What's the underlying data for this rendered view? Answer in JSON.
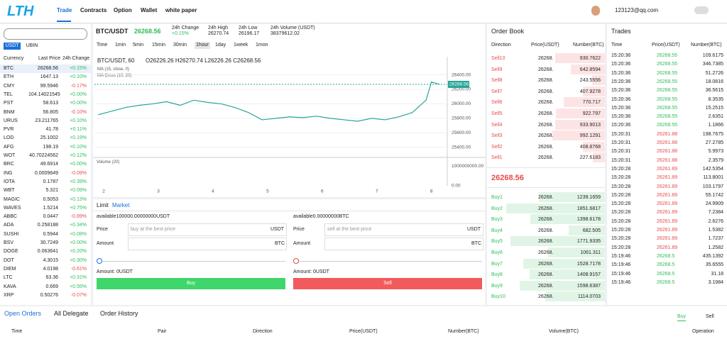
{
  "header": {
    "logo": "LTH",
    "nav": [
      "Trade",
      "Contracts",
      "Option",
      "Wallet",
      "white paper"
    ],
    "user": "123123@qq.com"
  },
  "markets": {
    "tabs": [
      "USDT",
      "UBIN"
    ],
    "columns": [
      "Currency",
      "Last Price",
      "24h Change"
    ],
    "rows": [
      [
        "BTC",
        "26268.56",
        "+0.15%"
      ],
      [
        "ETH",
        "1647.13",
        "+0.10%"
      ],
      [
        "CMY",
        "99.5946",
        "-0.17%"
      ],
      [
        "TEL",
        "104.14021545",
        "+0.00%"
      ],
      [
        "PST",
        "58.613",
        "+0.00%"
      ],
      [
        "BNM",
        "56.805",
        "-0.10%"
      ],
      [
        "URUS",
        "23.211765",
        "+0.10%"
      ],
      [
        "PVR",
        "41.78",
        "+0.11%"
      ],
      [
        "LOD",
        "25.1002",
        "+0.19%"
      ],
      [
        "AFG",
        "198.19",
        "+0.10%"
      ],
      [
        "WOT",
        "40.70224562",
        "+0.12%"
      ],
      [
        "BRC",
        "49.6914",
        "+0.00%"
      ],
      [
        "ING",
        "0.0009649",
        "-0.09%"
      ],
      [
        "IOTA",
        "0.1787",
        "+0.39%"
      ],
      [
        "WBT",
        "5.321",
        "+0.09%"
      ],
      [
        "MAGIC",
        "0.5053",
        "+0.13%"
      ],
      [
        "WAVES",
        "1.5214",
        "+0.75%"
      ],
      [
        "ABBC",
        "0.0447",
        "-0.89%"
      ],
      [
        "ADA",
        "0.258188",
        "+0.34%"
      ],
      [
        "SUSHI",
        "0.5944",
        "+0.08%"
      ],
      [
        "BSV",
        "30.7249",
        "+0.00%"
      ],
      [
        "DOGE",
        "0.063641",
        "+0.20%"
      ],
      [
        "DOT",
        "4.3015",
        "+0.30%"
      ],
      [
        "DIEM",
        "4.0198",
        "-0.61%"
      ],
      [
        "LTC",
        "63.36",
        "+0.31%"
      ],
      [
        "KAVA",
        "0.669",
        "+0.55%"
      ],
      [
        "XRP",
        "0.50276",
        "-0.07%"
      ]
    ]
  },
  "ticker": {
    "pair": "BTC/USDT",
    "price": "26268.56",
    "stats": [
      [
        "24h Change",
        "+0.15%"
      ],
      [
        "24h High",
        "26270.74"
      ],
      [
        "24h Low",
        "26196.17"
      ],
      [
        "24h Volume  (USDT)",
        "38379612.02"
      ]
    ]
  },
  "intervals": [
    "Time",
    "1min",
    "5min",
    "15min",
    "30min",
    "1hour",
    "1day",
    "1week",
    "1mon"
  ],
  "chart": {
    "legend_title": "BTC/USDT, 60",
    "ohlc": "O26226.26 H26270.74 L26226.26 C26268.56",
    "studies": [
      "MA (15, close, 0)",
      "MA Cross (10, 20)"
    ],
    "x": [
      1.9,
      2.15,
      2.4,
      2.65,
      2.9,
      3.15,
      3.4,
      3.65,
      3.9,
      4.15,
      4.4,
      4.65,
      4.9,
      5.15,
      5.4,
      5.65,
      5.9,
      6.15,
      6.4,
      6.65,
      6.9,
      7.15,
      7.4,
      7.65,
      7.9,
      8.0,
      8.1,
      8.15
    ],
    "close": [
      25850,
      25900,
      25950,
      25980,
      26000,
      26030,
      25980,
      26050,
      26020,
      26000,
      25950,
      25880,
      25780,
      25800,
      25820,
      25810,
      25830,
      25800,
      25780,
      25760,
      25800,
      25780,
      25820,
      25880,
      26050,
      26300,
      26280,
      26268.56
    ],
    "color": "#26a69a",
    "xlim": [
      1.83,
      8.29
    ],
    "ylim": [
      25300,
      26650
    ],
    "xticks": [
      2,
      3,
      4,
      5,
      6,
      7,
      8
    ],
    "yticks": [
      {
        "value": 26400,
        "label": "26400.00"
      },
      {
        "value": 26200,
        "label": "26200.00"
      },
      {
        "value": 26000,
        "label": "26000.00"
      },
      {
        "value": 25800,
        "label": "25800.00"
      },
      {
        "value": 25600,
        "label": "25600.00"
      },
      {
        "value": 25400,
        "label": "25400.00"
      }
    ],
    "last": {
      "value": 26268.56,
      "label": "26268.56"
    },
    "volume_title": "Volume (20)",
    "vol_ylim": [
      0,
      1300000000
    ],
    "vol_yticks": [
      {
        "value": 1000000000,
        "label": "1000000000.00"
      },
      {
        "value": 0,
        "label": "0.00"
      }
    ]
  },
  "trade_form": {
    "tabs": [
      "Limit",
      "Market"
    ],
    "buy": {
      "available": "available100000.00000000USDT",
      "price_label": "Price",
      "placeholder": "buy at the best price",
      "price_unit": "USDT",
      "amount_label": "Amount",
      "amount_unit": "BTC",
      "total": "Amount:  0USDT",
      "button": "Buy"
    },
    "sell": {
      "available": "available0.00000000BTC",
      "price_label": "Price",
      "placeholder": "sell at the best price",
      "price_unit": "USDT",
      "amount_label": "Amount",
      "amount_unit": "BTC",
      "total": "Amount:  0USDT",
      "button": "Sell"
    }
  },
  "order_book": {
    "title": "Order Book",
    "columns": [
      "Direction",
      "Price(USDT)",
      "Number(BTC)"
    ],
    "asks": [
      [
        "Sell10",
        "26268.",
        "930.7622"
      ],
      [
        "Sell9",
        "26268.",
        "642.8594"
      ],
      [
        "Sell8",
        "26268.",
        "243.5556"
      ],
      [
        "Sell7",
        "26268.",
        "407.9278"
      ],
      [
        "Sell6",
        "26268.",
        "770.717"
      ],
      [
        "Sell5",
        "26268.",
        "922.797"
      ],
      [
        "Sell4",
        "26268.",
        "933.9013"
      ],
      [
        "Sell3",
        "26268.",
        "992.1291"
      ],
      [
        "Sell2",
        "26268.",
        "408.8768"
      ],
      [
        "Sell1",
        "26268.",
        "227.6183"
      ]
    ],
    "mid": "26268.56",
    "bids": [
      [
        "Buy1",
        "26268.",
        "1239.1659"
      ],
      [
        "Buy2",
        "26268.",
        "1851.6817"
      ],
      [
        "Buy3",
        "26268.",
        "1398.6178"
      ],
      [
        "Buy4",
        "26268.",
        "682.505"
      ],
      [
        "Buy5",
        "26268.",
        "1771.9335"
      ],
      [
        "Buy6",
        "26268.",
        "1061.311"
      ],
      [
        "Buy7",
        "26268.",
        "1528.7178"
      ],
      [
        "Buy8",
        "26268.",
        "1408.9157"
      ],
      [
        "Buy9",
        "26268.",
        "1598.6387"
      ],
      [
        "Buy10",
        "26268.",
        "1114.0703"
      ]
    ]
  },
  "trades": {
    "title": "Trades",
    "columns": [
      "Time",
      "Price(USDT)",
      "Number(BTC)"
    ],
    "rows": [
      [
        "15:20:36",
        "26268.55",
        "109.6175"
      ],
      [
        "15:20:36",
        "26268.55",
        "346.7385"
      ],
      [
        "15:20:36",
        "26268.55",
        "51.2726"
      ],
      [
        "15:20:36",
        "26268.55",
        "18.0816"
      ],
      [
        "15:20:36",
        "26268.55",
        "36.5615"
      ],
      [
        "15:20:36",
        "26268.55",
        "8.3535"
      ],
      [
        "15:20:36",
        "26268.55",
        "15.2515"
      ],
      [
        "15:20:36",
        "26268.55",
        "2.6351"
      ],
      [
        "15:20:36",
        "26268.55",
        "1.1866"
      ],
      [
        "15:20:31",
        "26261.88",
        "198.7675"
      ],
      [
        "15:20:31",
        "26261.88",
        "27.2785"
      ],
      [
        "15:20:31",
        "26261.88",
        "5.9973"
      ],
      [
        "15:20:31",
        "26261.88",
        "2.3579"
      ],
      [
        "15:20:28",
        "26261.89",
        "142.5354"
      ],
      [
        "15:20:28",
        "26261.89",
        "113.8001"
      ],
      [
        "15:20:28",
        "26261.89",
        "103.1797"
      ],
      [
        "15:20:28",
        "26261.89",
        "55.1742"
      ],
      [
        "15:20:28",
        "26261.89",
        "24.9909"
      ],
      [
        "15:20:28",
        "26261.89",
        "7.2384"
      ],
      [
        "15:20:28",
        "26261.89",
        "2.6276"
      ],
      [
        "15:20:28",
        "26261.89",
        "1.5382"
      ],
      [
        "15:20:28",
        "26261.89",
        "1.7237"
      ],
      [
        "15:20:28",
        "26261.89",
        "1.2582"
      ],
      [
        "15:19:46",
        "26268.5",
        "435.1392"
      ],
      [
        "15:19:46",
        "26268.5",
        "35.6555"
      ],
      [
        "15:19:46",
        "26268.5",
        "31.18"
      ],
      [
        "15:19:46",
        "26268.5",
        "3.1984"
      ]
    ],
    "colors": [
      "#2ebd58",
      "#2ebd58",
      "#2ebd58",
      "#2ebd58",
      "#2ebd58",
      "#2ebd58",
      "#2ebd58",
      "#2ebd58",
      "#2ebd58",
      "#e74b4b",
      "#e74b4b",
      "#e74b4b",
      "#e74b4b",
      "#e74b4b",
      "#e74b4b",
      "#e74b4b",
      "#e74b4b",
      "#e74b4b",
      "#e74b4b",
      "#e74b4b",
      "#e74b4b",
      "#e74b4b",
      "#e74b4b",
      "#2ebd58",
      "#2ebd58",
      "#2ebd58",
      "#2ebd58"
    ]
  },
  "orders": {
    "tabs": [
      "Open Orders",
      "All Delegate",
      "Order History"
    ],
    "sides": [
      "Buy",
      "Sell"
    ],
    "columns": [
      "Time",
      "Pair",
      "Direction",
      "Price(USDT)",
      "Number(BTC)",
      "Volume(BTC)",
      "Operation"
    ]
  }
}
